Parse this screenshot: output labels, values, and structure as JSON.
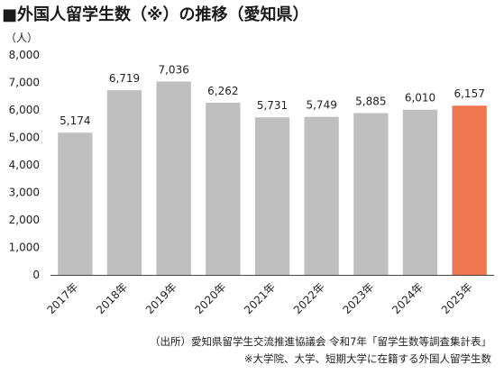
{
  "title": "■外国人留学生数（※）の推移（愛知県）",
  "unit": "（人）",
  "source": "（出所）愛知県留学生交流推進協議会 令和7年「留学生数等調査集計表」",
  "footnote": "※大学院、大学、短期大学に在籍する外国人留学生数",
  "colors": {
    "bar": "#bfbfbf",
    "highlight": "#f07650",
    "axis": "#444444"
  },
  "chart_data": {
    "type": "bar",
    "title": "■外国人留学生数（※）の推移（愛知県）",
    "xlabel": "",
    "ylabel": "（人）",
    "ylim": [
      0,
      8000
    ],
    "yticks": [
      0,
      1000,
      2000,
      3000,
      4000,
      5000,
      6000,
      7000,
      8000
    ],
    "ytick_labels": [
      "0",
      "1,000",
      "2,000",
      "3,000",
      "4,000",
      "5,000",
      "6,000",
      "7,000",
      "8,000"
    ],
    "categories": [
      "2017年",
      "2018年",
      "2019年",
      "2020年",
      "2021年",
      "2022年",
      "2023年",
      "2024年",
      "2025年"
    ],
    "values": [
      5174,
      6719,
      7036,
      6262,
      5731,
      5749,
      5885,
      6010,
      6157
    ],
    "value_labels": [
      "5,174",
      "6,719",
      "7,036",
      "6,262",
      "5,731",
      "5,749",
      "5,885",
      "6,010",
      "6,157"
    ],
    "highlight_index": 8,
    "grid": false,
    "legend": "none"
  }
}
